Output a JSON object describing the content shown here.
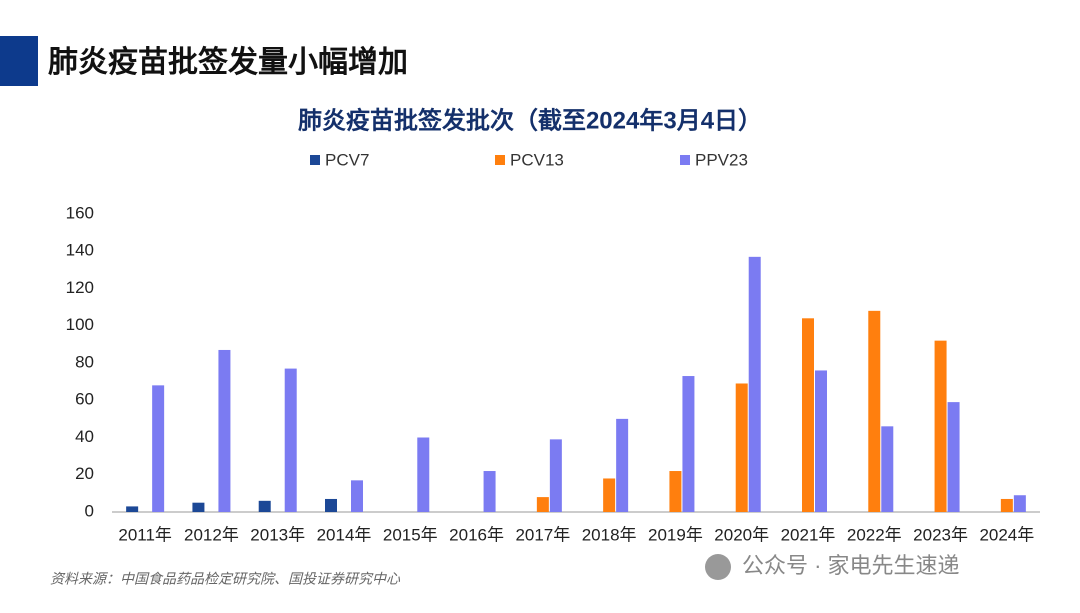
{
  "header": {
    "title": "肺炎疫苗批签发量小幅增加"
  },
  "chart_data": {
    "type": "bar",
    "title": "肺炎疫苗批签发批次（截至2024年3月4日）",
    "categories": [
      "2011年",
      "2012年",
      "2013年",
      "2014年",
      "2015年",
      "2016年",
      "2017年",
      "2018年",
      "2019年",
      "2020年",
      "2021年",
      "2022年",
      "2023年",
      "2024年"
    ],
    "series": [
      {
        "name": "PCV7",
        "color": "#1c4896",
        "values": [
          3,
          5,
          6,
          7,
          null,
          null,
          null,
          null,
          null,
          null,
          null,
          null,
          null,
          null
        ]
      },
      {
        "name": "PCV13",
        "color": "#ff7f0e",
        "values": [
          null,
          null,
          null,
          null,
          null,
          null,
          8,
          18,
          22,
          69,
          104,
          108,
          92,
          7
        ]
      },
      {
        "name": "PPV23",
        "color": "#7b7bf2",
        "values": [
          68,
          87,
          77,
          17,
          40,
          22,
          39,
          50,
          73,
          137,
          76,
          46,
          59,
          9
        ]
      }
    ],
    "ylim": [
      0,
      160
    ],
    "yticks": [
      0,
      20,
      40,
      60,
      80,
      100,
      120,
      140,
      160
    ],
    "grid": false,
    "legend": "top"
  },
  "footer": {
    "source": "资料来源：中国食品药品检定研究院、国投证券研究中心",
    "watermark": "公众号 · 家电先生速递"
  }
}
